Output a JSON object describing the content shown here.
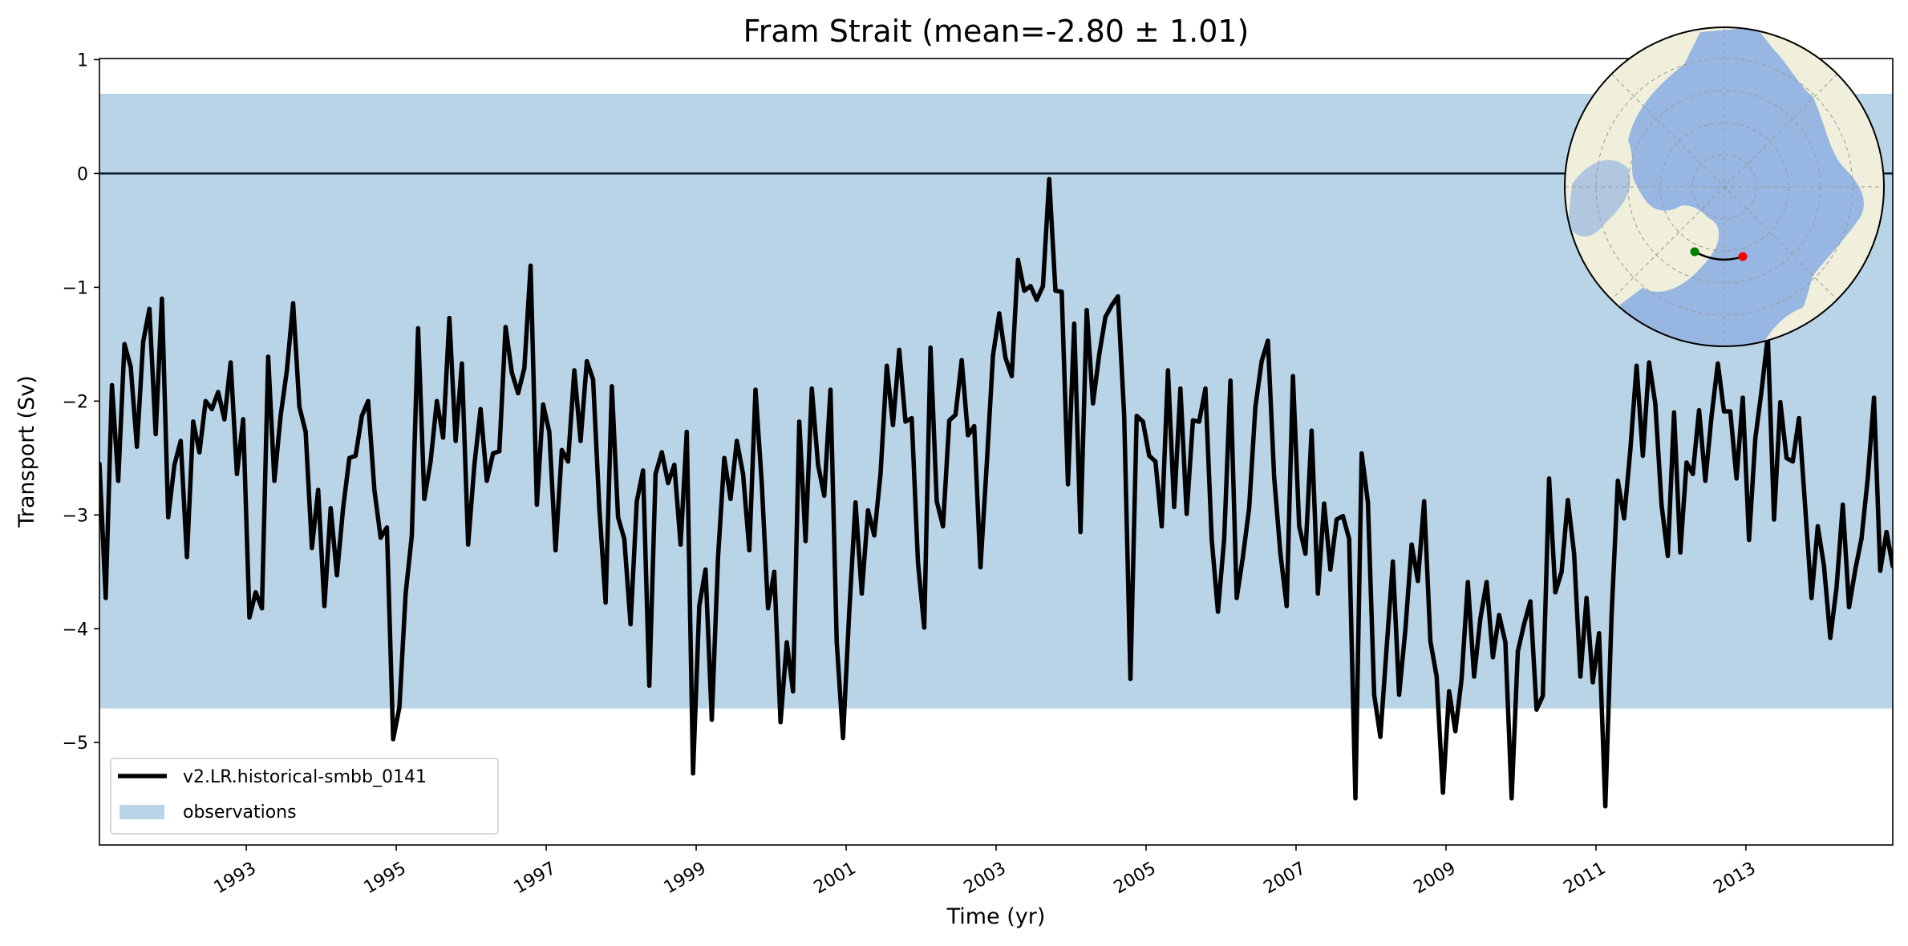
{
  "chart_data": {
    "type": "line",
    "title": "Fram Strait (mean=-2.80 ± 1.01)",
    "xlabel": "Time (yr)",
    "ylabel": "Transport (Sv)",
    "xlim": [
      "1991-01",
      "2014-12"
    ],
    "ylim": [
      -5.9,
      1.01
    ],
    "xticks": [
      "1993",
      "1995",
      "1997",
      "1999",
      "2001",
      "2003",
      "2005",
      "2007",
      "2009",
      "2011",
      "2013"
    ],
    "yticks": [
      1,
      0,
      -1,
      -2,
      -3,
      -4,
      -5
    ],
    "ytick_labels": [
      "1",
      "0",
      "−1",
      "−2",
      "−3",
      "−4",
      "−5"
    ],
    "grid": false,
    "legend_position": "lower-left",
    "reference_line": 0,
    "observations_band": {
      "name": "observations",
      "range": [
        -4.7,
        0.7
      ],
      "color": "#b9d4e7"
    },
    "series": [
      {
        "name": "v2.LR.historical-smbb_0141",
        "color": "#000000",
        "frequency": "monthly",
        "values_by_year": {
          "1991": [
            -2.55,
            -3.73,
            -1.86,
            -2.7,
            -1.5,
            -1.7,
            -2.4,
            -1.48,
            -1.19,
            -2.29,
            -1.1,
            -3.02
          ],
          "1992": [
            -2.56,
            -2.35,
            -3.37,
            -2.18,
            -2.45,
            -2.0,
            -2.07,
            -1.92,
            -2.16,
            -1.66,
            -2.64,
            -2.16
          ],
          "1993": [
            -3.9,
            -3.68,
            -3.82,
            -1.61,
            -2.7,
            -2.13,
            -1.73,
            -1.14,
            -2.05,
            -2.27,
            -3.29,
            -2.78
          ],
          "1994": [
            -3.8,
            -2.94,
            -3.53,
            -2.94,
            -2.5,
            -2.48,
            -2.13,
            -2.0,
            -2.78,
            -3.2,
            -3.11,
            -4.97
          ],
          "1995": [
            -4.69,
            -3.69,
            -3.18,
            -1.36,
            -2.86,
            -2.53,
            -2.0,
            -2.32,
            -1.27,
            -2.35,
            -1.67,
            -3.26
          ],
          "1996": [
            -2.56,
            -2.07,
            -2.7,
            -2.46,
            -2.44,
            -1.35,
            -1.75,
            -1.93,
            -1.71,
            -0.81,
            -2.91,
            -2.03
          ],
          "1997": [
            -2.27,
            -3.31,
            -2.43,
            -2.53,
            -1.73,
            -2.35,
            -1.65,
            -1.81,
            -2.94,
            -3.77,
            -1.87,
            -3.02
          ],
          "1998": [
            -3.21,
            -3.96,
            -2.88,
            -2.61,
            -4.5,
            -2.64,
            -2.45,
            -2.72,
            -2.56,
            -3.26,
            -2.27,
            -5.27
          ],
          "1999": [
            -3.8,
            -3.48,
            -4.8,
            -3.37,
            -2.5,
            -2.86,
            -2.35,
            -2.64,
            -3.31,
            -1.9,
            -2.72,
            -3.82
          ],
          "2000": [
            -3.5,
            -4.82,
            -4.12,
            -4.55,
            -2.18,
            -3.23,
            -1.89,
            -2.56,
            -2.83,
            -1.9,
            -4.12,
            -4.96
          ],
          "2001": [
            -3.85,
            -2.89,
            -3.69,
            -2.96,
            -3.18,
            -2.64,
            -1.69,
            -2.21,
            -1.55,
            -2.18,
            -2.15,
            -3.42
          ],
          "2002": [
            -3.99,
            -1.53,
            -2.88,
            -3.1,
            -2.17,
            -2.12,
            -1.64,
            -2.3,
            -2.22,
            -3.46,
            -2.56,
            -1.6
          ],
          "2003": [
            -1.23,
            -1.62,
            -1.78,
            -0.76,
            -1.03,
            -0.99,
            -1.11,
            -0.99,
            -0.05,
            -1.03,
            -1.04,
            -2.73
          ],
          "2004": [
            -1.32,
            -3.15,
            -1.2,
            -2.02,
            -1.59,
            -1.26,
            -1.16,
            -1.08,
            -2.13,
            -4.44,
            -2.13,
            -2.18
          ],
          "2005": [
            -2.48,
            -2.53,
            -3.1,
            -1.73,
            -2.93,
            -1.89,
            -2.99,
            -2.17,
            -2.18,
            -1.89,
            -3.21,
            -3.85
          ],
          "2006": [
            -3.21,
            -1.82,
            -3.73,
            -3.37,
            -2.94,
            -2.05,
            -1.65,
            -1.47,
            -2.67,
            -3.34,
            -3.8,
            -1.78
          ],
          "2007": [
            -3.1,
            -3.34,
            -2.26,
            -3.69,
            -2.9,
            -3.48,
            -3.04,
            -3.01,
            -3.21,
            -5.49,
            -2.46,
            -2.89
          ],
          "2008": [
            -4.58,
            -4.95,
            -4.17,
            -3.41,
            -4.58,
            -4.01,
            -3.26,
            -3.58,
            -2.88,
            -4.11,
            -4.42,
            -5.44
          ],
          "2009": [
            -4.55,
            -4.9,
            -4.44,
            -3.59,
            -4.42,
            -3.91,
            -3.59,
            -4.25,
            -3.88,
            -4.12,
            -5.49,
            -4.2
          ],
          "2010": [
            -3.96,
            -3.76,
            -4.71,
            -4.59,
            -2.68,
            -3.68,
            -3.5,
            -2.87,
            -3.34,
            -4.42,
            -3.73,
            -4.47
          ],
          "2011": [
            -4.04,
            -5.56,
            -3.88,
            -2.7,
            -3.03,
            -2.43,
            -1.69,
            -2.48,
            -1.66,
            -2.02,
            -2.91,
            -3.36
          ],
          "2012": [
            -2.1,
            -3.33,
            -2.54,
            -2.64,
            -2.08,
            -2.7,
            -2.13,
            -1.67,
            -2.09,
            -2.09,
            -2.68,
            -1.97
          ],
          "2013": [
            -3.22,
            -2.33,
            -1.91,
            -1.43,
            -3.04,
            -2.01,
            -2.5,
            -2.53,
            -2.15,
            -2.94,
            -3.73,
            -3.1
          ],
          "2014": [
            -3.45,
            -4.08,
            -3.64,
            -2.91,
            -3.81,
            -3.48,
            -3.21,
            -2.68,
            -1.97,
            -3.49,
            -3.15,
            -3.45
          ]
        }
      }
    ],
    "legend": [
      {
        "label": "v2.LR.historical-smbb_0141",
        "type": "line",
        "color": "#000000"
      },
      {
        "label": "observations",
        "type": "patch",
        "color": "#b9d4e7"
      }
    ],
    "inset_map": {
      "projection": "north-polar-stereographic",
      "land_color": "#efefdb",
      "ocean_color": "#97b6e1",
      "section_start_color": "#008000",
      "section_end_color": "#ff0000"
    }
  }
}
